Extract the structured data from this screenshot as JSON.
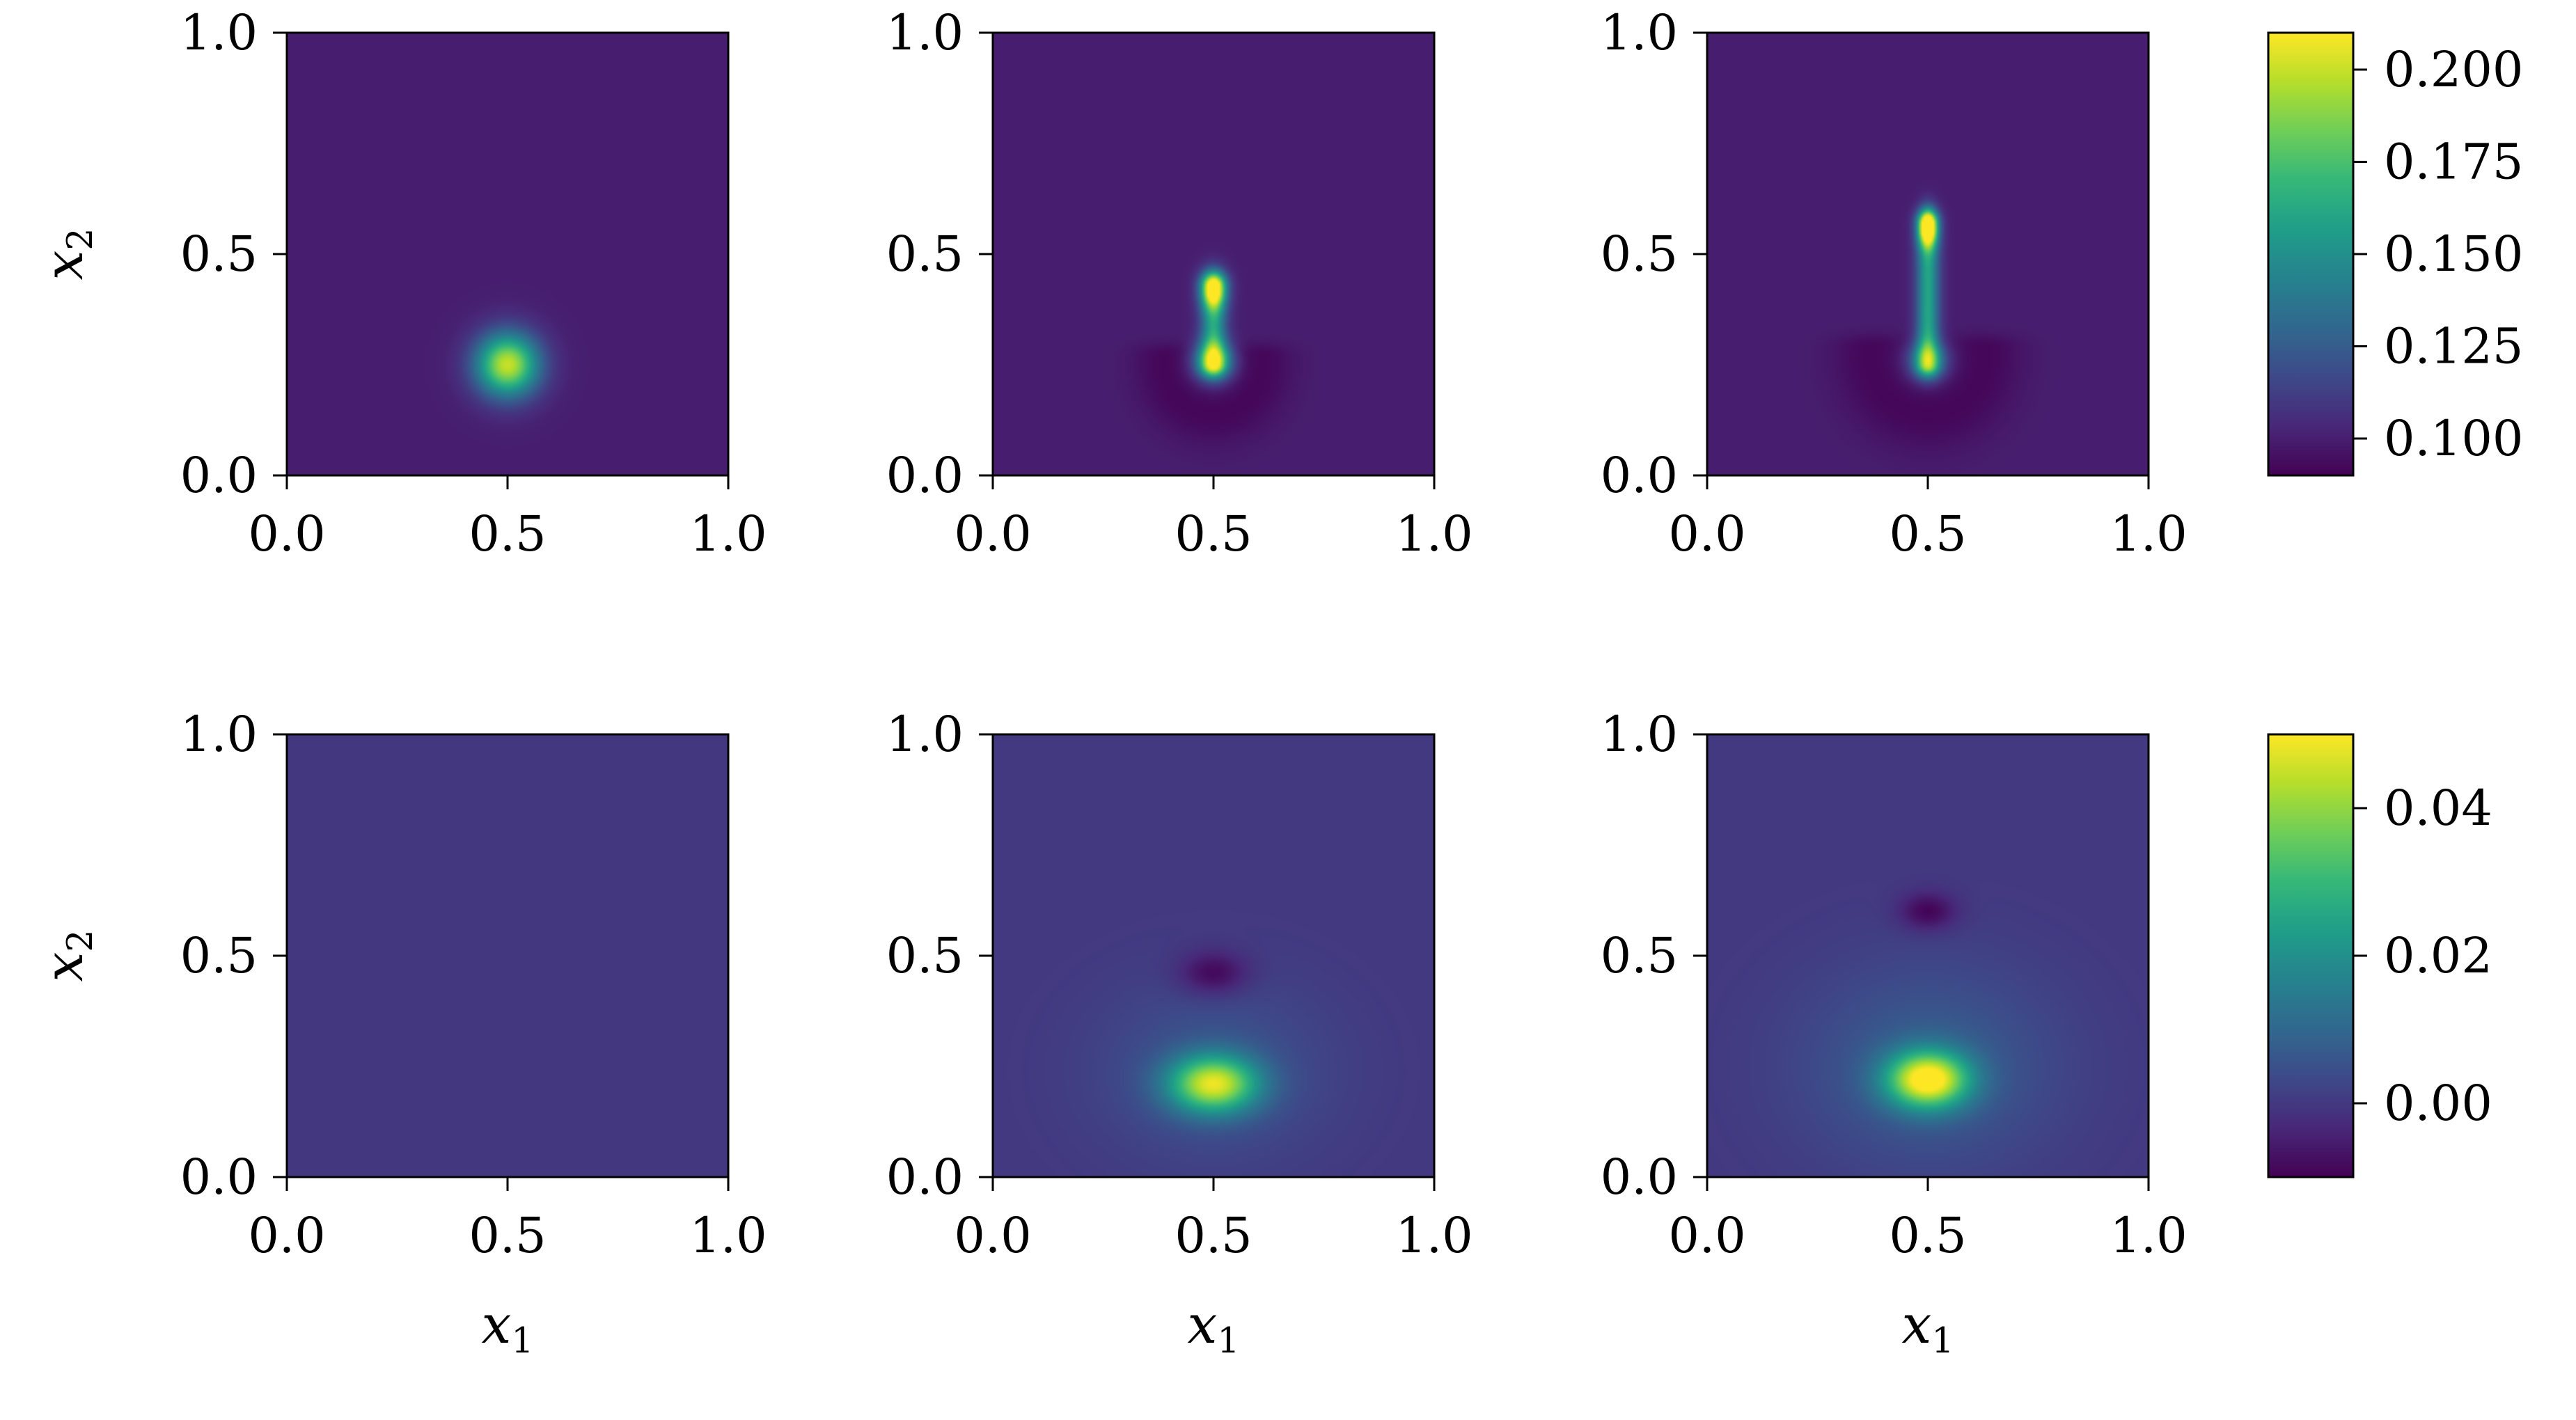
{
  "colors": {
    "viridis": [
      "#440154",
      "#482878",
      "#3e4989",
      "#31688e",
      "#26828e",
      "#1f9e89",
      "#35b779",
      "#6ece58",
      "#b5de2b",
      "#fde725"
    ],
    "axis": "#000000",
    "background": "#ffffff"
  },
  "chart_data": [
    {
      "type": "heatmap",
      "row": 0,
      "col": 0,
      "xlabel": "",
      "ylabel": "x2",
      "xlim": [
        0,
        1
      ],
      "ylim": [
        0,
        1
      ],
      "xticks": [
        "0.0",
        "0.5",
        "1.0"
      ],
      "yticks": [
        "0.0",
        "0.5",
        "1.0"
      ],
      "value_range": [
        0.09,
        0.21
      ],
      "background_value": 0.1,
      "features": [
        {
          "kind": "blob",
          "x": 0.5,
          "y": 0.25,
          "radius_x": 0.05,
          "radius_y": 0.05,
          "peak": 0.2
        }
      ]
    },
    {
      "type": "heatmap",
      "row": 0,
      "col": 1,
      "xlabel": "",
      "ylabel": "",
      "xlim": [
        0,
        1
      ],
      "ylim": [
        0,
        1
      ],
      "xticks": [
        "0.0",
        "0.5",
        "1.0"
      ],
      "yticks": [
        "0.0",
        "0.5",
        "1.0"
      ],
      "value_range": [
        0.09,
        0.21
      ],
      "background_value": 0.1,
      "features": [
        {
          "kind": "ring",
          "x": 0.5,
          "y": 0.25,
          "radius": 0.11,
          "width": 0.05,
          "peak": 0.092
        },
        {
          "kind": "streak",
          "x": 0.5,
          "y_from": 0.25,
          "y_to": 0.43,
          "half_width": 0.02,
          "peak": 0.16
        },
        {
          "kind": "blob",
          "x": 0.5,
          "y": 0.26,
          "radius_x": 0.03,
          "radius_y": 0.03,
          "peak": 0.17
        },
        {
          "kind": "blob",
          "x": 0.5,
          "y": 0.42,
          "radius_x": 0.02,
          "radius_y": 0.03,
          "peak": 0.18
        }
      ]
    },
    {
      "type": "heatmap",
      "row": 0,
      "col": 2,
      "xlabel": "",
      "ylabel": "",
      "xlim": [
        0,
        1
      ],
      "ylim": [
        0,
        1
      ],
      "xticks": [
        "0.0",
        "0.5",
        "1.0"
      ],
      "yticks": [
        "0.0",
        "0.5",
        "1.0"
      ],
      "value_range": [
        0.09,
        0.21
      ],
      "background_value": 0.1,
      "features": [
        {
          "kind": "ring",
          "x": 0.5,
          "y": 0.27,
          "radius": 0.13,
          "width": 0.06,
          "peak": 0.092
        },
        {
          "kind": "streak",
          "x": 0.5,
          "y_from": 0.25,
          "y_to": 0.57,
          "half_width": 0.018,
          "peak": 0.16
        },
        {
          "kind": "blob",
          "x": 0.5,
          "y": 0.26,
          "radius_x": 0.03,
          "radius_y": 0.03,
          "peak": 0.15
        },
        {
          "kind": "blob",
          "x": 0.5,
          "y": 0.56,
          "radius_x": 0.015,
          "radius_y": 0.03,
          "peak": 0.2
        }
      ]
    },
    {
      "type": "heatmap",
      "row": 1,
      "col": 0,
      "xlabel": "x1",
      "ylabel": "x2",
      "xlim": [
        0,
        1
      ],
      "ylim": [
        0,
        1
      ],
      "xticks": [
        "0.0",
        "0.5",
        "1.0"
      ],
      "yticks": [
        "0.0",
        "0.5",
        "1.0"
      ],
      "value_range": [
        -0.01,
        0.05
      ],
      "background_value": 0.0,
      "features": []
    },
    {
      "type": "heatmap",
      "row": 1,
      "col": 1,
      "xlabel": "x1",
      "ylabel": "",
      "xlim": [
        0,
        1
      ],
      "ylim": [
        0,
        1
      ],
      "xticks": [
        "0.0",
        "0.5",
        "1.0"
      ],
      "yticks": [
        "0.0",
        "0.5",
        "1.0"
      ],
      "value_range": [
        -0.01,
        0.05
      ],
      "background_value": 0.0,
      "features": [
        {
          "kind": "blob",
          "x": 0.5,
          "y": 0.24,
          "radius_x": 0.18,
          "radius_y": 0.14,
          "peak": 0.006
        },
        {
          "kind": "blob",
          "x": 0.5,
          "y": 0.21,
          "radius_x": 0.07,
          "radius_y": 0.045,
          "peak": 0.043
        },
        {
          "kind": "blob",
          "x": 0.5,
          "y": 0.46,
          "radius_x": 0.055,
          "radius_y": 0.035,
          "peak": -0.01
        }
      ]
    },
    {
      "type": "heatmap",
      "row": 1,
      "col": 2,
      "xlabel": "x1",
      "ylabel": "",
      "xlim": [
        0,
        1
      ],
      "ylim": [
        0,
        1
      ],
      "xticks": [
        "0.0",
        "0.5",
        "1.0"
      ],
      "yticks": [
        "0.0",
        "0.5",
        "1.0"
      ],
      "value_range": [
        -0.01,
        0.05
      ],
      "background_value": 0.0,
      "features": [
        {
          "kind": "blob",
          "x": 0.5,
          "y": 0.25,
          "radius_x": 0.2,
          "radius_y": 0.16,
          "peak": 0.008
        },
        {
          "kind": "blob",
          "x": 0.5,
          "y": 0.22,
          "radius_x": 0.065,
          "radius_y": 0.045,
          "peak": 0.049
        },
        {
          "kind": "blob",
          "x": 0.5,
          "y": 0.6,
          "radius_x": 0.045,
          "radius_y": 0.03,
          "peak": -0.01
        }
      ]
    }
  ],
  "colorbars": [
    {
      "row": 0,
      "range": [
        0.09,
        0.21
      ],
      "ticks": [
        0.1,
        0.125,
        0.15,
        0.175,
        0.2
      ],
      "labels": [
        "0.100",
        "0.125",
        "0.150",
        "0.175",
        "0.200"
      ]
    },
    {
      "row": 1,
      "range": [
        -0.01,
        0.05
      ],
      "ticks": [
        0.0,
        0.02,
        0.04
      ],
      "labels": [
        "0.00",
        "0.02",
        "0.04"
      ]
    }
  ]
}
